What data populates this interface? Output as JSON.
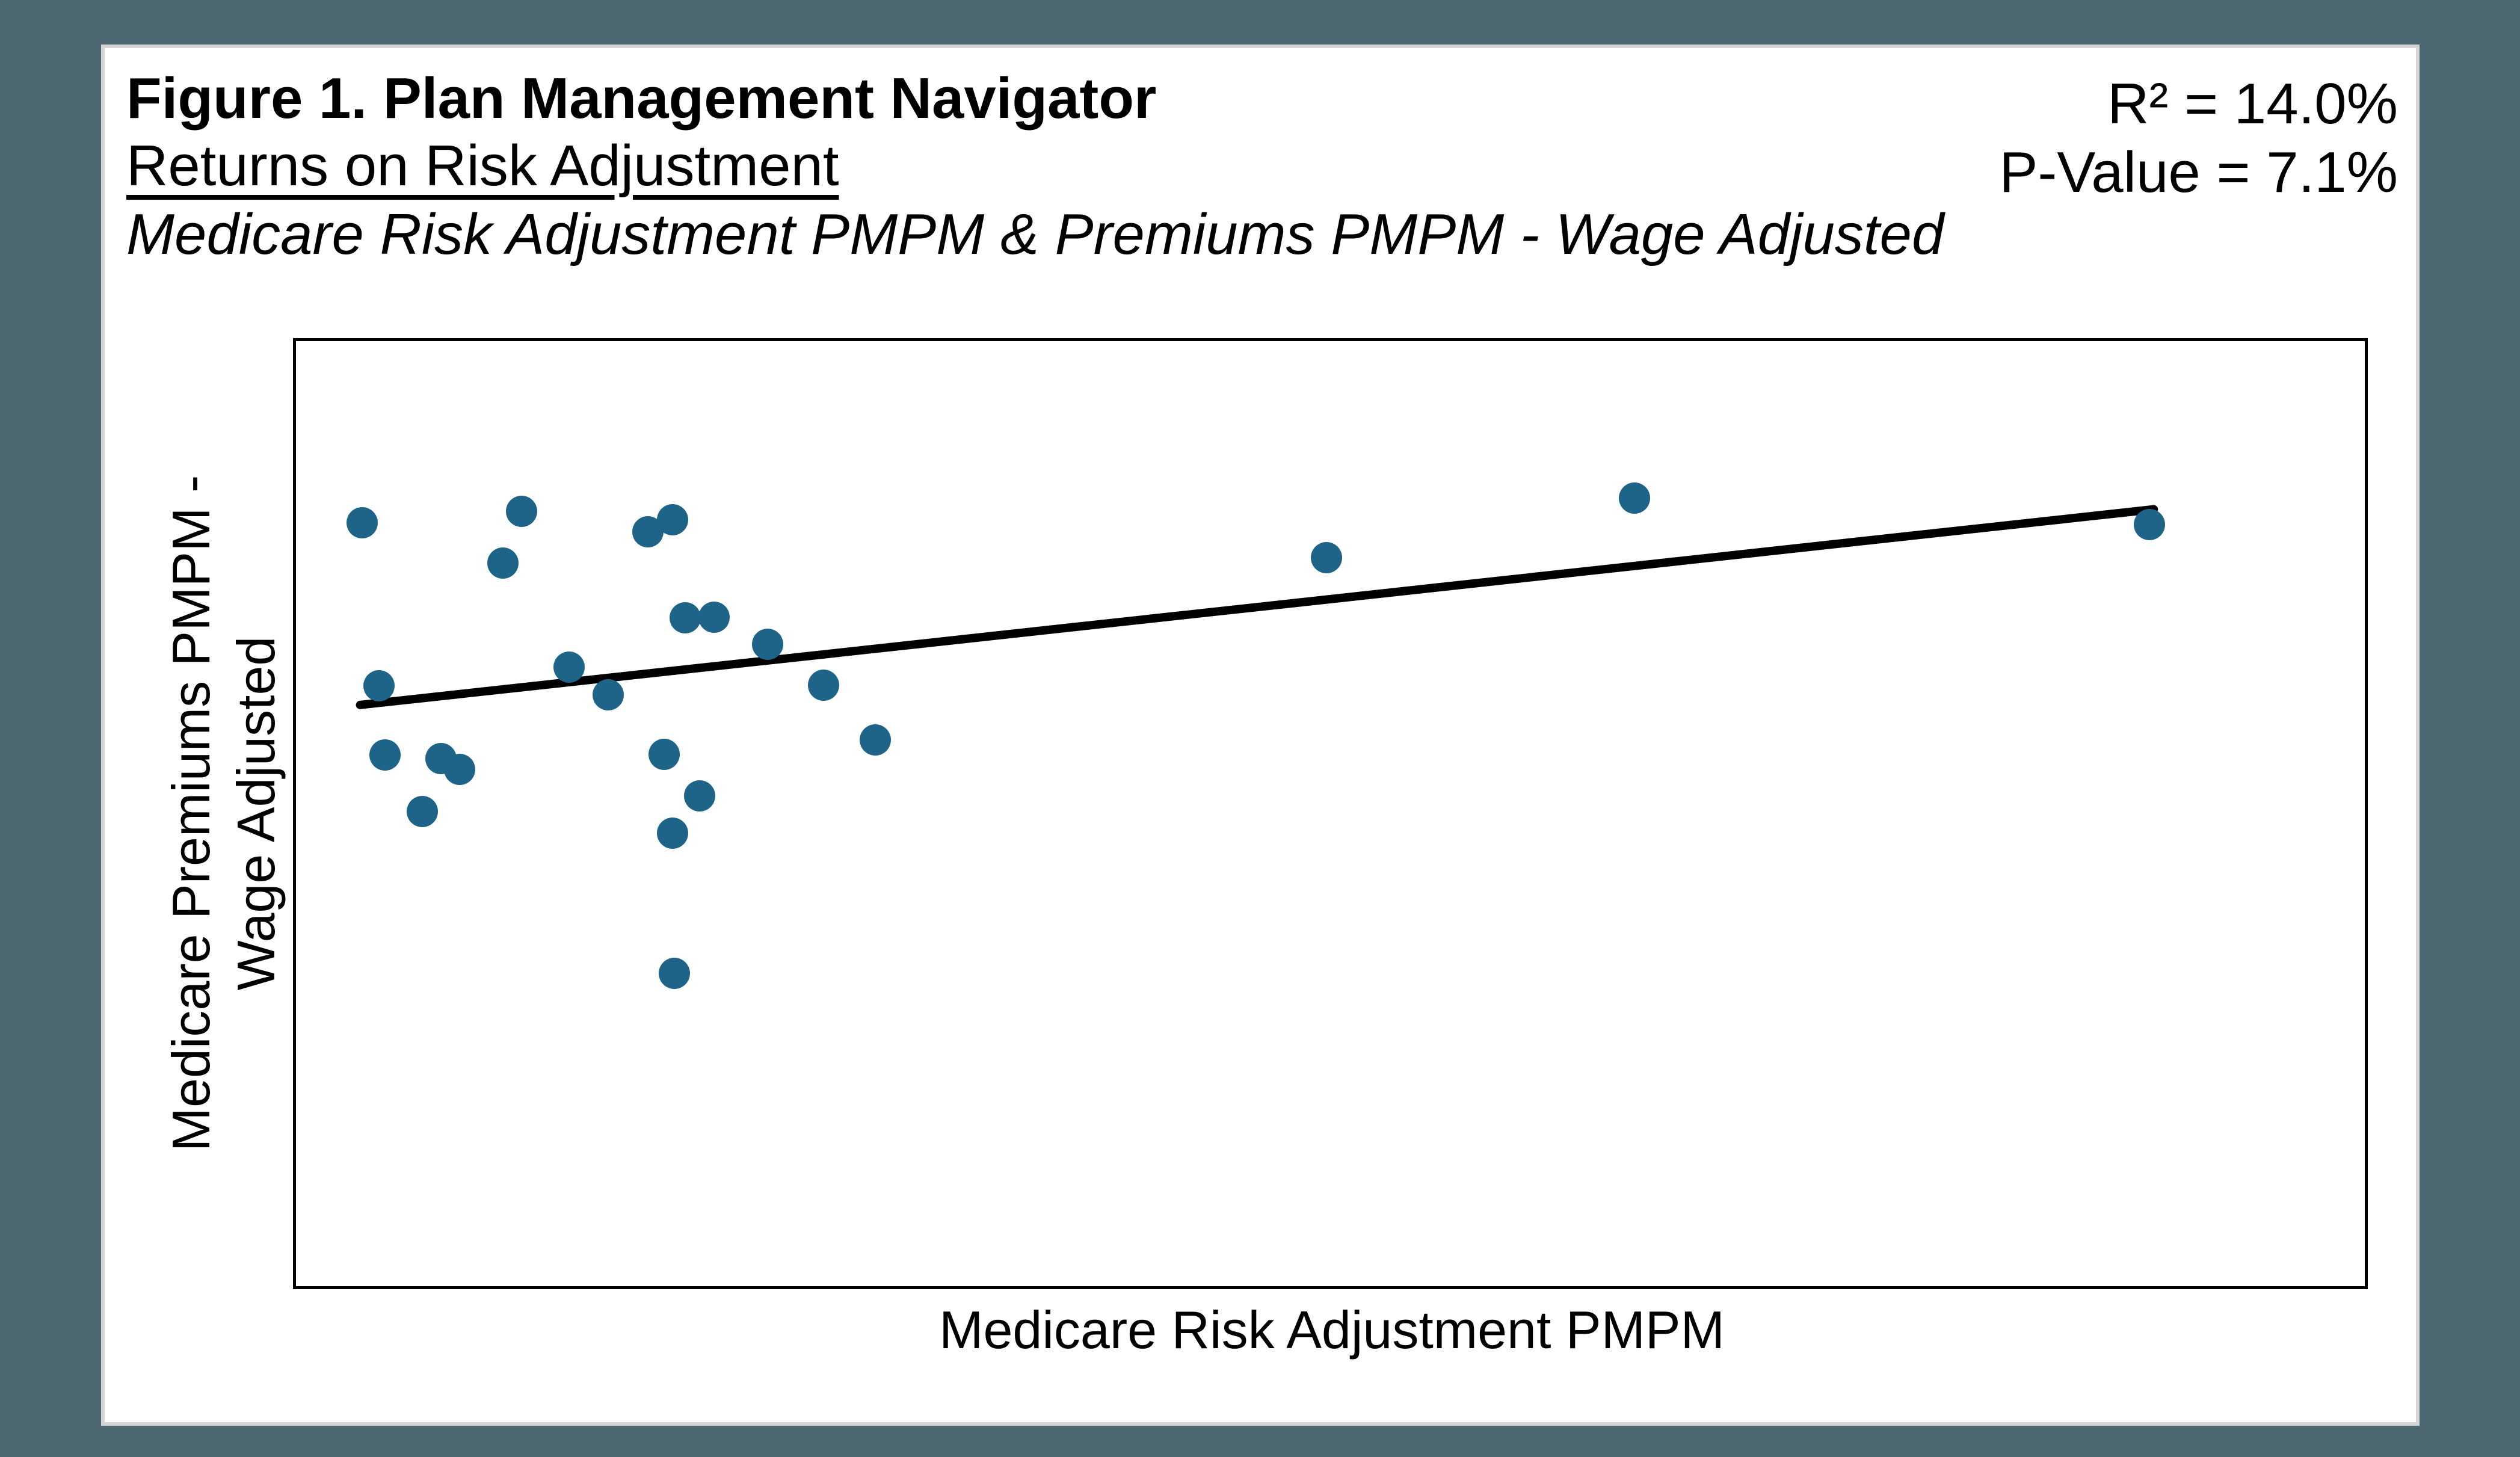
{
  "page": {
    "background_color": "#4D6870",
    "card_background": "#FFFFFF",
    "card_border_color": "#D5D5D5"
  },
  "header": {
    "title": "Figure 1. Plan Management Navigator",
    "subtitle": "Returns on Risk Adjustment",
    "description": "Medicare Risk Adjustment PMPM & Premiums PMPM - Wage Adjusted"
  },
  "stats": {
    "r_squared_label": "R² = 14.0%",
    "p_value_label": "P-Value = 7.1%"
  },
  "chart_data": {
    "type": "scatter",
    "title": "Figure 1. Plan Management Navigator — Returns on Risk Adjustment",
    "xlabel": "Medicare Risk Adjustment PMPM",
    "ylabel_line1": "Medicare Premiums PMPM -",
    "ylabel_line2": "Wage Adjusted",
    "r_squared": "14.0%",
    "p_value": "7.1%",
    "gridlines": false,
    "axis_tick_labels": false,
    "legend": false,
    "point_color": "#1E6489",
    "coordinate_system": "fraction of plot area; x from left (0-1), y from bottom (0-1); no numeric axis scales shown in source",
    "points": [
      {
        "x": 0.032,
        "y": 0.808
      },
      {
        "x": 0.109,
        "y": 0.82
      },
      {
        "x": 0.1,
        "y": 0.765
      },
      {
        "x": 0.17,
        "y": 0.798
      },
      {
        "x": 0.182,
        "y": 0.811
      },
      {
        "x": 0.188,
        "y": 0.707
      },
      {
        "x": 0.202,
        "y": 0.708
      },
      {
        "x": 0.228,
        "y": 0.679
      },
      {
        "x": 0.04,
        "y": 0.635
      },
      {
        "x": 0.132,
        "y": 0.655
      },
      {
        "x": 0.151,
        "y": 0.626
      },
      {
        "x": 0.255,
        "y": 0.636
      },
      {
        "x": 0.043,
        "y": 0.562
      },
      {
        "x": 0.07,
        "y": 0.558
      },
      {
        "x": 0.079,
        "y": 0.547
      },
      {
        "x": 0.178,
        "y": 0.563
      },
      {
        "x": 0.28,
        "y": 0.578
      },
      {
        "x": 0.061,
        "y": 0.502
      },
      {
        "x": 0.195,
        "y": 0.519
      },
      {
        "x": 0.182,
        "y": 0.479
      },
      {
        "x": 0.183,
        "y": 0.331
      },
      {
        "x": 0.498,
        "y": 0.771
      },
      {
        "x": 0.647,
        "y": 0.834
      },
      {
        "x": 0.896,
        "y": 0.806
      }
    ],
    "trendline": {
      "x1": 0.031,
      "y1": 0.615,
      "x2": 0.898,
      "y2": 0.822,
      "color": "#000000",
      "stroke_width": 14
    }
  }
}
